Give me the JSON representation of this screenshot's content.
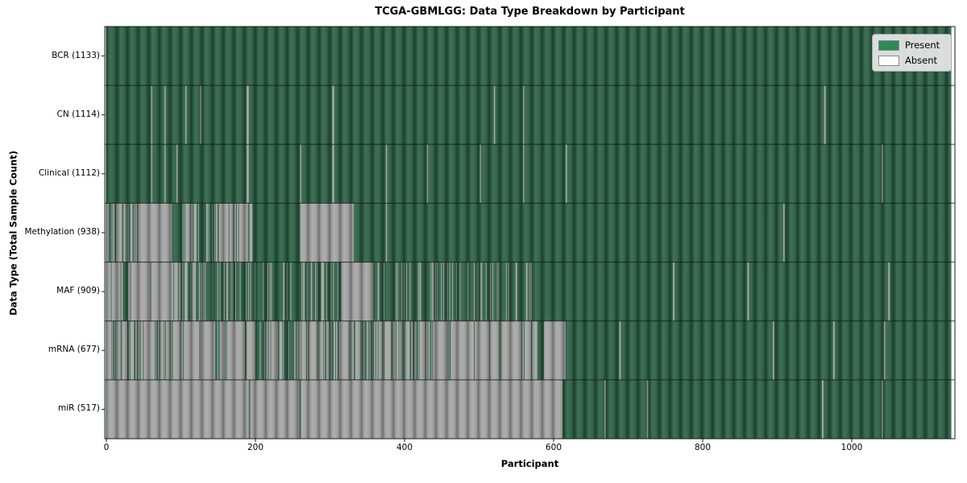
{
  "figure": {
    "background": "#ffffff"
  },
  "chart_data": {
    "type": "heatmap",
    "title": "TCGA-GBMLGG: Data Type Breakdown by Participant",
    "xlabel": "Participant",
    "ylabel": "Data Type (Total Sample Count)",
    "grid": false,
    "legend": {
      "position": "upper right",
      "items": [
        {
          "label": "Present",
          "color": "#2e8b57"
        },
        {
          "label": "Absent",
          "color": "#ffffff"
        }
      ]
    },
    "x_ticks": [
      0,
      200,
      400,
      600,
      800,
      1000
    ],
    "x_range": [
      0,
      1140
    ],
    "n_participants": 1133,
    "colors": {
      "present_fill": "#2b5e44",
      "absent_fill": "#a3a3a3",
      "row_separator": "rgba(15,25,20,0.8)",
      "plot_border": "#1a1a1a"
    },
    "rows": [
      {
        "label": "BCR (1133)",
        "data_type": "BCR",
        "present_count": 1133,
        "absent_segments": []
      },
      {
        "label": "CN (1114)",
        "data_type": "CN",
        "present_count": 1114,
        "absent_segments": [
          {
            "s": 60,
            "e": 61.5,
            "d": 1
          },
          {
            "s": 78,
            "e": 79.5,
            "d": 1
          },
          {
            "s": 106,
            "e": 107.5,
            "d": 1
          },
          {
            "s": 126,
            "e": 127.5,
            "d": 1
          },
          {
            "s": 188,
            "e": 191,
            "d": 1
          },
          {
            "s": 303,
            "e": 305.5,
            "d": 1
          },
          {
            "s": 520,
            "e": 521.5,
            "d": 1
          },
          {
            "s": 559,
            "e": 560.5,
            "d": 1
          },
          {
            "s": 963,
            "e": 965,
            "d": 1
          }
        ]
      },
      {
        "label": "Clinical (1112)",
        "data_type": "Clinical",
        "present_count": 1112,
        "absent_segments": [
          {
            "s": 60,
            "e": 61.5,
            "d": 1
          },
          {
            "s": 78,
            "e": 79.5,
            "d": 1
          },
          {
            "s": 94,
            "e": 95.5,
            "d": 1
          },
          {
            "s": 188,
            "e": 191,
            "d": 1
          },
          {
            "s": 260,
            "e": 261.5,
            "d": 1
          },
          {
            "s": 303,
            "e": 305.5,
            "d": 1
          },
          {
            "s": 375,
            "e": 376.5,
            "d": 1
          },
          {
            "s": 430,
            "e": 431.5,
            "d": 1
          },
          {
            "s": 501,
            "e": 502.5,
            "d": 1
          },
          {
            "s": 559,
            "e": 560.5,
            "d": 1
          },
          {
            "s": 616,
            "e": 618,
            "d": 1
          },
          {
            "s": 1040,
            "e": 1042,
            "d": 1
          }
        ]
      },
      {
        "label": "Methylation (938)",
        "data_type": "Methylation",
        "present_count": 938,
        "absent_segments": [
          {
            "s": 0,
            "e": 46,
            "d": 0.5
          },
          {
            "s": 46,
            "e": 88,
            "d": 1
          },
          {
            "s": 102,
            "e": 145,
            "d": 0.6
          },
          {
            "s": 145,
            "e": 196,
            "d": 0.8
          },
          {
            "s": 260,
            "e": 332,
            "d": 1
          },
          {
            "s": 375,
            "e": 376.5,
            "d": 1
          },
          {
            "s": 908,
            "e": 910,
            "d": 1
          }
        ]
      },
      {
        "label": "MAF (909)",
        "data_type": "MAF",
        "present_count": 909,
        "absent_segments": [
          {
            "s": 0,
            "e": 23,
            "d": 0.85
          },
          {
            "s": 29,
            "e": 92,
            "d": 0.88
          },
          {
            "s": 92,
            "e": 120,
            "d": 0.6
          },
          {
            "s": 120,
            "e": 172,
            "d": 0.35
          },
          {
            "s": 172,
            "e": 264,
            "d": 0.15
          },
          {
            "s": 264,
            "e": 315,
            "d": 0.3
          },
          {
            "s": 315,
            "e": 358,
            "d": 1
          },
          {
            "s": 358,
            "e": 573,
            "d": 0.2
          },
          {
            "s": 760,
            "e": 762,
            "d": 1
          },
          {
            "s": 860,
            "e": 862,
            "d": 1
          },
          {
            "s": 1049,
            "e": 1051,
            "d": 1
          }
        ]
      },
      {
        "label": "mRNA (677)",
        "data_type": "mRNA",
        "present_count": 677,
        "absent_segments": [
          {
            "s": 0,
            "e": 200,
            "d": 0.85
          },
          {
            "s": 200,
            "e": 212,
            "d": 0.15
          },
          {
            "s": 212,
            "e": 238,
            "d": 0.8
          },
          {
            "s": 238,
            "e": 252,
            "d": 0.12
          },
          {
            "s": 252,
            "e": 340,
            "d": 0.8
          },
          {
            "s": 340,
            "e": 365,
            "d": 0.5
          },
          {
            "s": 365,
            "e": 455,
            "d": 0.78
          },
          {
            "s": 455,
            "e": 578,
            "d": 0.93
          },
          {
            "s": 587,
            "e": 616,
            "d": 1
          },
          {
            "s": 688,
            "e": 690,
            "d": 1
          },
          {
            "s": 894,
            "e": 896,
            "d": 1
          },
          {
            "s": 975,
            "e": 977,
            "d": 1
          },
          {
            "s": 1043,
            "e": 1045,
            "d": 1
          }
        ]
      },
      {
        "label": "miR (517)",
        "data_type": "miR",
        "present_count": 517,
        "absent_segments": [
          {
            "s": 0,
            "e": 191,
            "d": 1
          },
          {
            "s": 193,
            "e": 259,
            "d": 1
          },
          {
            "s": 261,
            "e": 612,
            "d": 1
          },
          {
            "s": 668,
            "e": 670,
            "d": 1
          },
          {
            "s": 725,
            "e": 727,
            "d": 1
          },
          {
            "s": 960,
            "e": 962,
            "d": 1
          },
          {
            "s": 1040,
            "e": 1042,
            "d": 1
          }
        ]
      }
    ]
  }
}
